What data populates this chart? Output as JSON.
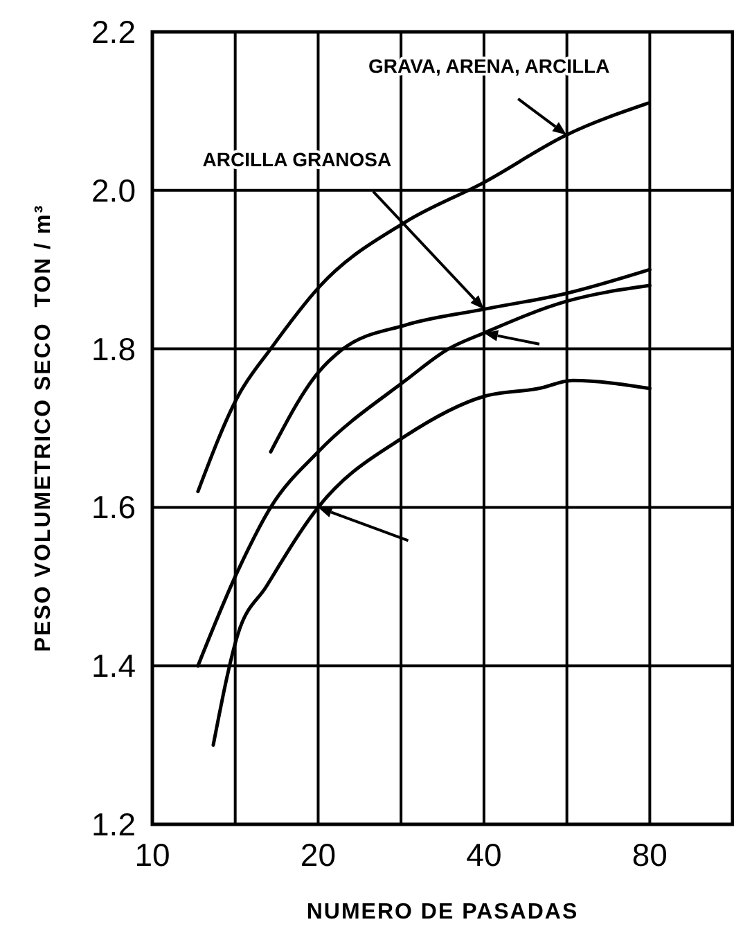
{
  "chart_data": {
    "type": "line",
    "xlabel": "NUMERO DE PASADAS",
    "ylabel": "PESO VOLUMETRICO SECO  TON / m³",
    "log": "x",
    "grid": true,
    "marker": "none",
    "line_style": "solid",
    "xlim": [
      10,
      113.1
    ],
    "xticks": [
      10,
      {
        "value": 14.14,
        "label": null
      },
      20,
      {
        "value": 28.28,
        "label": null
      },
      40,
      {
        "value": 56.57,
        "label": null
      },
      80
    ],
    "ylim": [
      1.2,
      2.2
    ],
    "yticks": [
      {
        "value": 1.2,
        "label": "1.2"
      },
      {
        "value": 1.4,
        "label": "1.4"
      },
      {
        "value": 1.6,
        "label": "1.6"
      },
      {
        "value": 1.8,
        "label": "1.8"
      },
      {
        "value": 2.0,
        "label": "2.0"
      },
      {
        "value": 2.2,
        "label": "2.2"
      }
    ],
    "series": [
      {
        "color": "#000000",
        "x": [
          12.1,
          14.3,
          16.4,
          20.2,
          28.8,
          40,
          56.5,
          79.5
        ],
        "values": [
          1.62,
          1.74,
          1.8,
          1.88,
          1.96,
          2.01,
          2.07,
          2.11
        ]
      },
      {
        "color": "#000000",
        "x": [
          16.4,
          20,
          22.2,
          28.8,
          40,
          56.5,
          80
        ],
        "values": [
          1.67,
          1.77,
          1.8,
          1.83,
          1.85,
          1.87,
          1.9
        ]
      },
      {
        "color": "#000000",
        "x": [
          12.1,
          14.3,
          16.4,
          20,
          28.8,
          34.5,
          40,
          56.5,
          80
        ],
        "values": [
          1.4,
          1.52,
          1.6,
          1.67,
          1.76,
          1.8,
          1.82,
          1.86,
          1.88
        ]
      },
      {
        "color": "#000000",
        "x": [
          12.9,
          14.3,
          16.1,
          20,
          28.8,
          40,
          50.3,
          58,
          80
        ],
        "values": [
          1.3,
          1.44,
          1.5,
          1.6,
          1.69,
          1.74,
          1.75,
          1.76,
          1.75
        ]
      }
    ],
    "annotations": [
      "GRAVA, ARENA, ARCILLA",
      "ARCILLA GRANOSA"
    ]
  }
}
